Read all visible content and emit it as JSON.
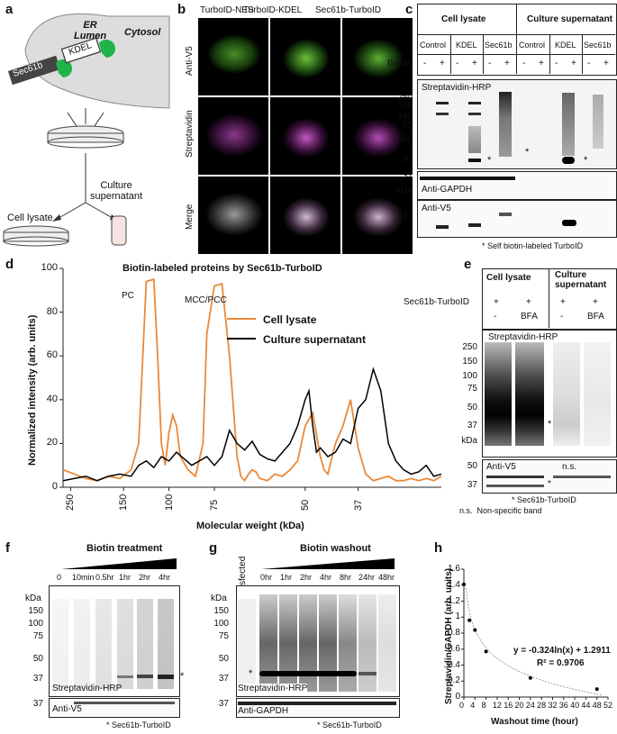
{
  "panel_letters": [
    "a",
    "b",
    "c",
    "d",
    "e",
    "f",
    "g",
    "h"
  ],
  "a": {
    "er_lumen": "ER\nLumen",
    "cytosol": "Cytosol",
    "sec61b": "Sec61b",
    "kdel": "KDEL",
    "cell_lysate": "Cell lysate",
    "culture_supernatant": "Culture\nsupernatant"
  },
  "b": {
    "columns": [
      "TurboID-NES",
      "TurboID-KDEL",
      "Sec61b-TurboID"
    ],
    "rows": [
      "Anti-V5",
      "Streptavidin",
      "Merge"
    ]
  },
  "c": {
    "groups": [
      "Cell lysate",
      "Culture supernatant"
    ],
    "conditions": [
      "Control",
      "KDEL",
      "Sec61b",
      "Control",
      "KDEL",
      "Sec61b"
    ],
    "biotin_label": "Biotin",
    "biotin_signs": [
      "-",
      "+",
      "-",
      "+",
      "-",
      "+",
      "-",
      "+",
      "-",
      "+",
      "-",
      "+"
    ],
    "blot1_label": "Streptavidin-HRP",
    "blot1_mw": [
      "150",
      "100",
      "75",
      "50",
      "37"
    ],
    "blot1_mw_top": "250",
    "blot2_label": "Anti-GAPDH",
    "blot2_mw": "37",
    "kda": "kDa",
    "blot3_label": "Anti-V5",
    "blot3_mw": "37",
    "footnote": "* Self biotin-labeled TurboID",
    "star": "*"
  },
  "d": {
    "title": "Biotin-labeled proteins by Sec61b-TurboID",
    "ylabel": "Normalized intensity (arb. units)",
    "xlabel": "Molecular weight (kDa)",
    "yticks": [
      "0",
      "20",
      "40",
      "60",
      "80",
      "100"
    ],
    "xticks": [
      "250",
      "150",
      "100",
      "75",
      "50",
      "37"
    ],
    "annot_pc": "PC",
    "annot_mcc": "MCC/PCC",
    "legend": [
      "Cell lysate",
      "Culture supernatant"
    ],
    "colors": {
      "lysate": "#e8893a",
      "supernatant": "#000000"
    }
  },
  "e": {
    "groups": [
      "Cell lysate",
      "Culture supernatant"
    ],
    "row1_label": "Sec61b-TurboID",
    "row1_signs": [
      "+",
      "+",
      "+",
      "+"
    ],
    "row2_signs": [
      "-",
      "BFA",
      "-",
      "BFA"
    ],
    "blot1_label": "Streptavidin-HRP",
    "blot1_mw": [
      "250",
      "150",
      "100",
      "75",
      "50",
      "37"
    ],
    "kda": "kDa",
    "blot2_label": "Anti-V5",
    "blot2_mw": [
      "50",
      "37"
    ],
    "ns": "n.s.",
    "foot1": "* Sec61b-TurboID",
    "foot2": "n.s.  Non-specific band",
    "star": "*"
  },
  "f": {
    "title": "Biotin treatment",
    "lanes": [
      "0",
      "10min",
      "0.5hr",
      "1hr",
      "2hr",
      "4hr"
    ],
    "kda": "kDa",
    "mw": [
      "150",
      "100",
      "75",
      "50",
      "37"
    ],
    "blot1_label": "Streptavidin-HRP",
    "blot2_label": "Anti-V5",
    "blot2_mw": "37",
    "footnote": "* Sec61b-TurboID",
    "star": "*"
  },
  "g": {
    "untransfected": "Untransfected",
    "title": "Biotin washout",
    "lanes": [
      "0hr",
      "1hr",
      "2hr",
      "4hr",
      "8hr",
      "24hr",
      "48hr"
    ],
    "kda": "kDa",
    "mw": [
      "150",
      "100",
      "75",
      "50",
      "37"
    ],
    "blot1_label": "Streptavidin-HRP",
    "blot2_label": "Anti-GAPDH",
    "blot2_mw": "37",
    "footnote": "* Sec61b-TurboID",
    "star": "*"
  },
  "chart_data": [
    {
      "type": "line",
      "title": "Biotin-labeled proteins by Sec61b-TurboID",
      "xlabel": "Molecular weight (kDa)",
      "ylabel": "Normalized intensity (arb. units)",
      "ylim": [
        0,
        100
      ],
      "x_tick_labels": [
        "250",
        "150",
        "100",
        "75",
        "50",
        "37"
      ],
      "legend": "top-right",
      "series": [
        {
          "name": "Cell lysate",
          "color": "#e8893a",
          "x": [
            0,
            3,
            6,
            9,
            12,
            15,
            18,
            20,
            22,
            24,
            25,
            26,
            27,
            28,
            29,
            30,
            31,
            33,
            35,
            37,
            38,
            40,
            42,
            44,
            46,
            47,
            48,
            49,
            50,
            51,
            52,
            54,
            56,
            58,
            60,
            62,
            64,
            66,
            67,
            68,
            69,
            70,
            72,
            74,
            76,
            78,
            80,
            82,
            84,
            86,
            88,
            90,
            92,
            94,
            96,
            98,
            100
          ],
          "y": [
            8,
            6,
            4,
            3,
            5,
            4,
            8,
            20,
            94,
            95,
            60,
            20,
            10,
            25,
            33,
            28,
            14,
            8,
            5,
            20,
            70,
            92,
            93,
            60,
            14,
            5,
            3,
            6,
            8,
            7,
            4,
            3,
            6,
            5,
            8,
            12,
            28,
            34,
            24,
            14,
            8,
            6,
            20,
            28,
            40,
            18,
            6,
            3,
            4,
            5,
            3,
            3,
            4,
            3,
            4,
            3,
            5
          ]
        },
        {
          "name": "Culture supernatant",
          "color": "#000000",
          "x": [
            0,
            3,
            6,
            9,
            12,
            15,
            18,
            20,
            22,
            24,
            26,
            28,
            30,
            32,
            34,
            36,
            38,
            40,
            42,
            44,
            46,
            48,
            50,
            52,
            54,
            56,
            58,
            60,
            62,
            64,
            65,
            66,
            67,
            68,
            70,
            72,
            74,
            76,
            78,
            80,
            82,
            84,
            86,
            88,
            90,
            92,
            94,
            96,
            98,
            100
          ],
          "y": [
            3,
            4,
            5,
            3,
            5,
            6,
            5,
            10,
            12,
            9,
            14,
            12,
            16,
            13,
            10,
            12,
            14,
            10,
            14,
            26,
            20,
            17,
            21,
            15,
            13,
            12,
            16,
            20,
            28,
            40,
            44,
            28,
            16,
            18,
            14,
            16,
            22,
            20,
            36,
            40,
            54,
            44,
            20,
            12,
            8,
            6,
            7,
            10,
            5,
            6
          ]
        }
      ]
    },
    {
      "type": "scatter",
      "xlabel": "Washout time (hour)",
      "ylabel": "Streptavidin/GAPDH (arb. units)",
      "ylim": [
        0,
        1.6
      ],
      "xlim": [
        0,
        52
      ],
      "y_ticks": [
        "0",
        "0.2",
        "0.4",
        "0.6",
        "0.8",
        "1",
        "1.2",
        "1.4",
        "1.6"
      ],
      "x_ticks": [
        "0",
        "4",
        "8",
        "12",
        "16",
        "20",
        "24",
        "28",
        "32",
        "36",
        "40",
        "44",
        "48",
        "52"
      ],
      "x": [
        0,
        2,
        4,
        8,
        24,
        48
      ],
      "y": [
        1.41,
        0.96,
        0.84,
        0.57,
        0.24,
        0.1
      ],
      "fit_equation": "y = -0.324ln(x) + 1.2911",
      "r2": "R² = 0.9706"
    }
  ]
}
